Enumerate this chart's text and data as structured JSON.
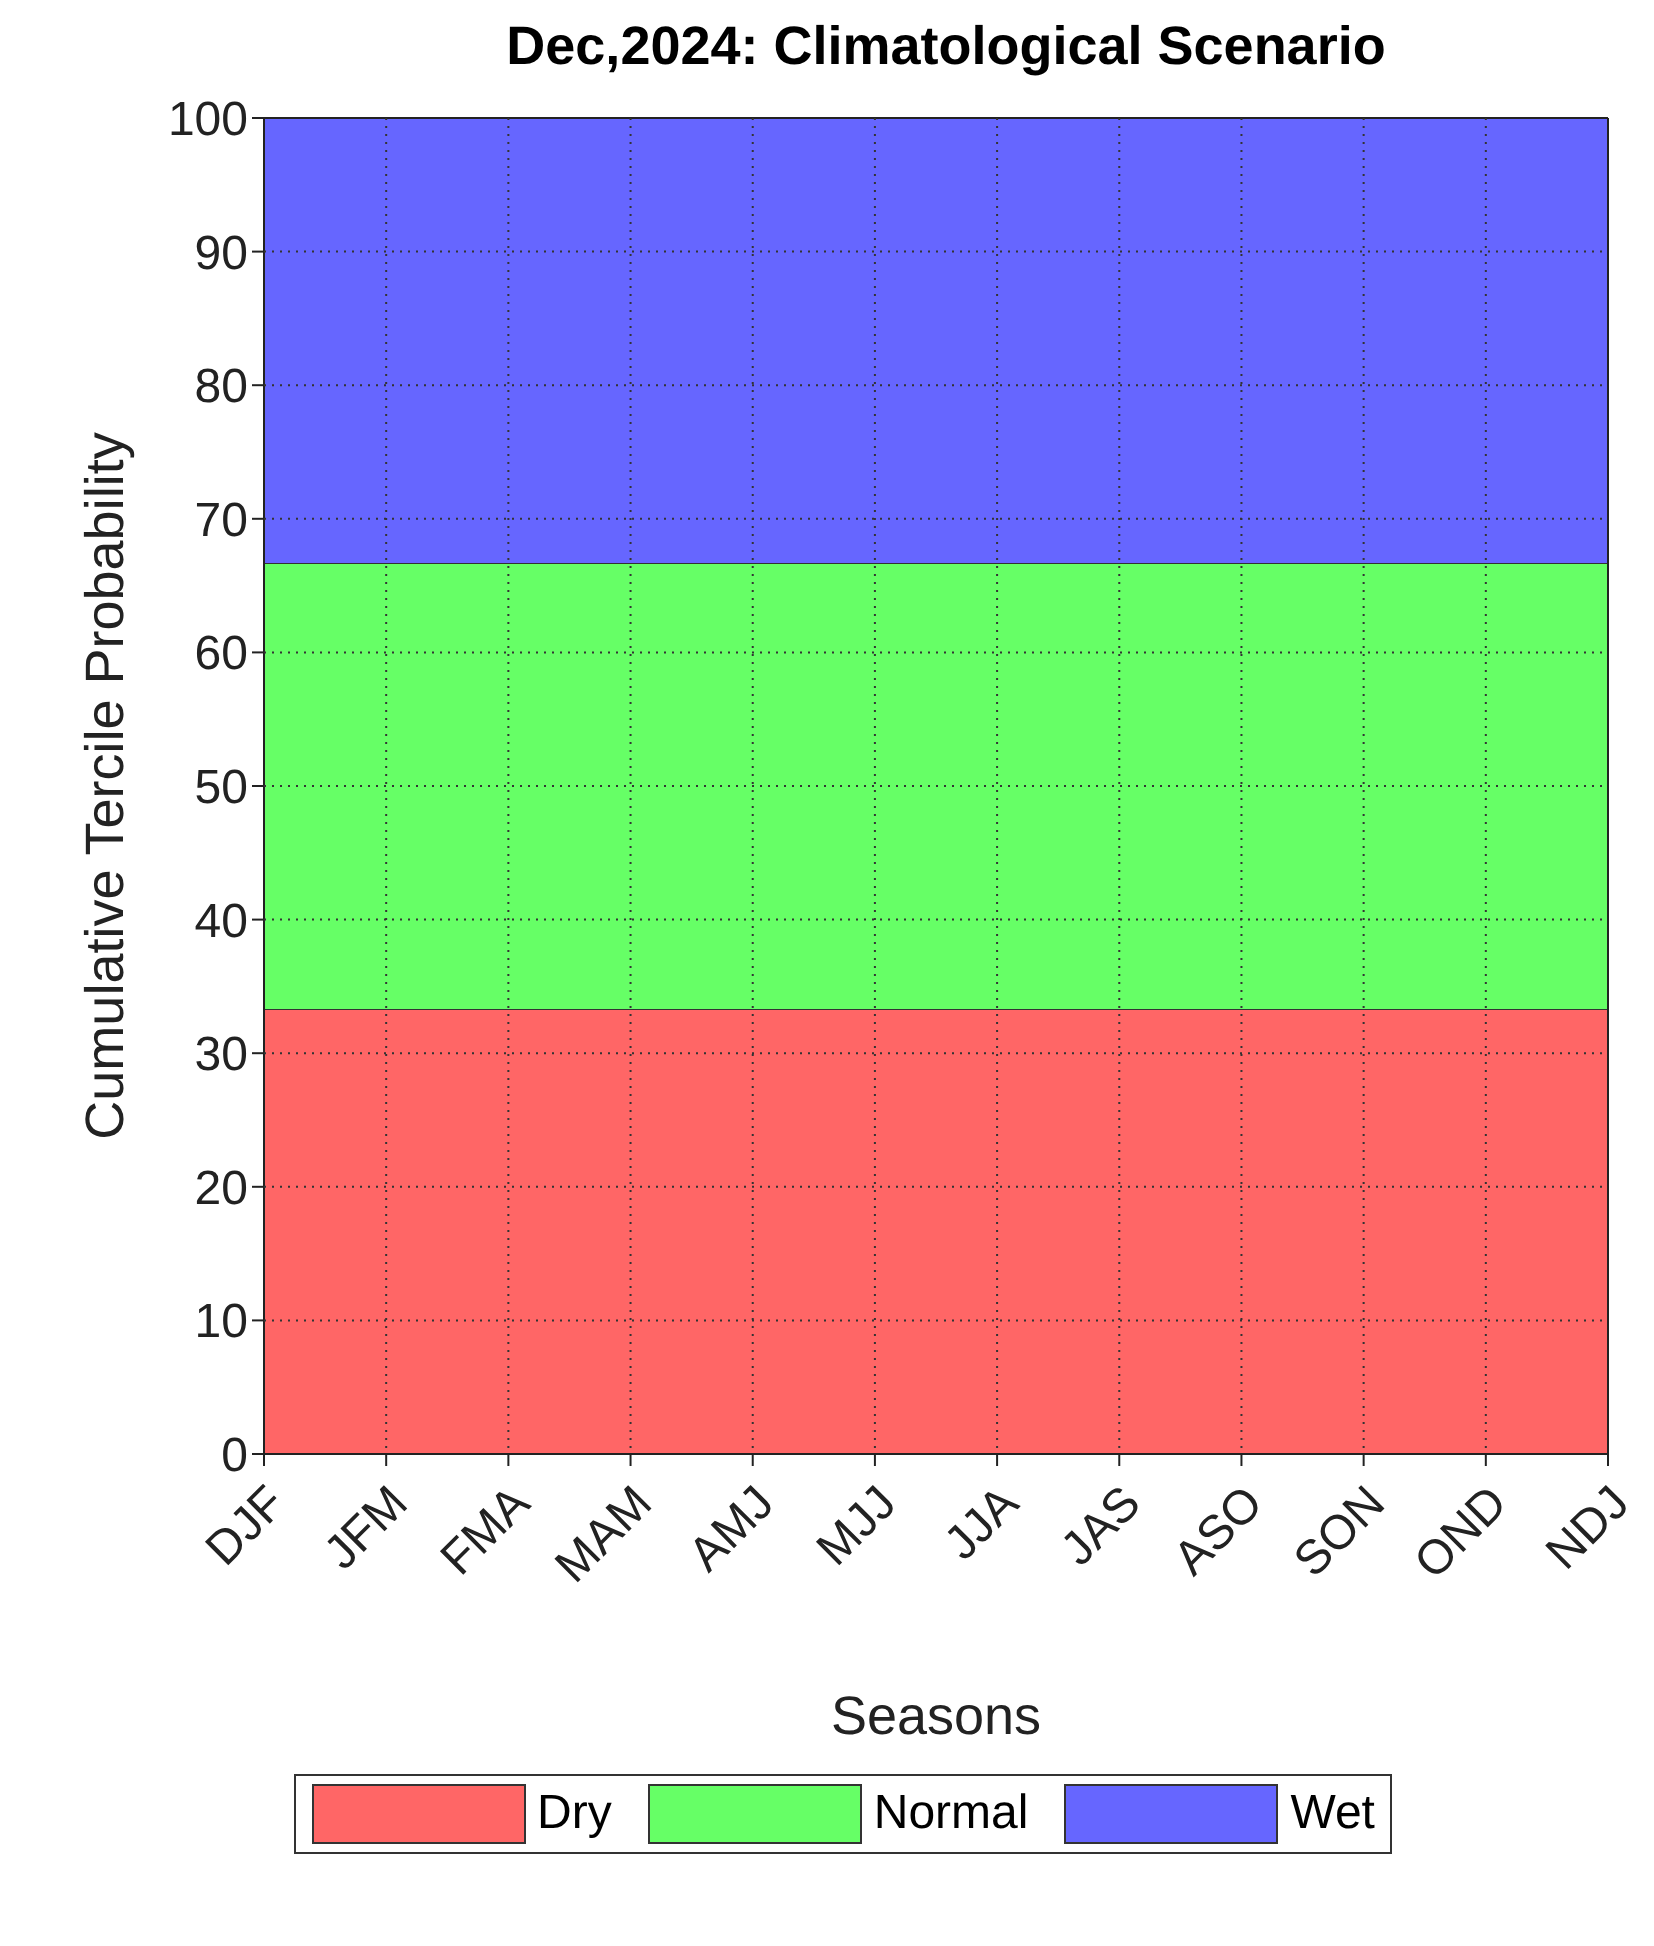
{
  "chart_data": {
    "type": "area",
    "title": "Dec,2024: Climatological Scenario",
    "xlabel": "Seasons",
    "ylabel": "Cumulative Tercile Probability",
    "categories": [
      "DJF",
      "JFM",
      "FMA",
      "MAM",
      "AMJ",
      "MJJ",
      "JJA",
      "JAS",
      "ASO",
      "SON",
      "OND",
      "NDJ"
    ],
    "stacked": true,
    "series": [
      {
        "name": "Dry",
        "color": "#ff6666",
        "values": [
          33.3,
          33.3,
          33.3,
          33.3,
          33.3,
          33.3,
          33.3,
          33.3,
          33.3,
          33.3,
          33.3,
          33.3
        ]
      },
      {
        "name": "Normal",
        "color": "#66ff66",
        "values": [
          33.4,
          33.4,
          33.4,
          33.4,
          33.4,
          33.4,
          33.4,
          33.4,
          33.4,
          33.4,
          33.4,
          33.4
        ]
      },
      {
        "name": "Wet",
        "color": "#6666ff",
        "values": [
          33.3,
          33.3,
          33.3,
          33.3,
          33.3,
          33.3,
          33.3,
          33.3,
          33.3,
          33.3,
          33.3,
          33.3
        ]
      }
    ],
    "ylim": [
      0,
      100
    ],
    "yticks": [
      0,
      10,
      20,
      30,
      40,
      50,
      60,
      70,
      80,
      90,
      100
    ],
    "grid": true,
    "legend": "bottom"
  }
}
